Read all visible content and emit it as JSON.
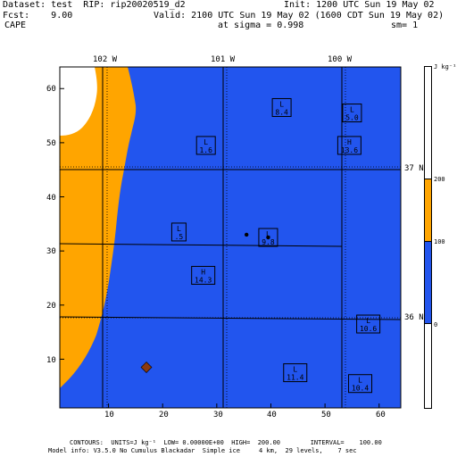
{
  "header": {
    "dataset": "Dataset: test  RIP: rip20020519_d2",
    "init": "Init: 1200 UTC Sun 19 May 02",
    "fcst": "Fcst:    9.00",
    "valid": "Valid: 2100 UTC Sun 19 May 02 (1600 CDT Sun 19 May 02)",
    "field": "CAPE",
    "sigma": "at sigma = 0.998",
    "sm": "sm= 1"
  },
  "top_labels": [
    "102 W",
    "101 W",
    "100 W"
  ],
  "right_labels": [
    "37 N",
    "36 N"
  ],
  "y_ticks": [
    "60",
    "50",
    "40",
    "30",
    "20",
    "10"
  ],
  "x_ticks": [
    "10",
    "20",
    "30",
    "40",
    "50",
    "60"
  ],
  "colorbar": {
    "unit": "J kg⁻¹",
    "labels": [
      "200",
      "100",
      "0"
    ],
    "colors": {
      "white": "#ffffff",
      "orange": "#ffa500",
      "blue": "#2255ee"
    }
  },
  "colors": {
    "blue": "#2255ee",
    "orange": "#ffa500",
    "marker": "#8b3a10"
  },
  "map": {
    "x_range": [
      1,
      64
    ],
    "y_range": [
      1,
      64
    ],
    "marks": [
      {
        "letter": "L",
        "value": "8.4",
        "x": 42,
        "y": 56.5
      },
      {
        "letter": "L",
        "value": "5.0",
        "x": 55,
        "y": 55.5
      },
      {
        "letter": "L",
        "value": "1.6",
        "x": 28,
        "y": 49.5
      },
      {
        "letter": "H",
        "value": "13.6",
        "x": 54.5,
        "y": 49.5
      },
      {
        "letter": "L",
        "value": ".5",
        "x": 23,
        "y": 33.5
      },
      {
        "letter": "L",
        "value": "9.8",
        "x": 39.5,
        "y": 32.5
      },
      {
        "letter": "H",
        "value": "14.3",
        "x": 27.5,
        "y": 25.5
      },
      {
        "letter": "L",
        "value": "10.6",
        "x": 58,
        "y": 16.5
      },
      {
        "letter": "L",
        "value": "11.4",
        "x": 44.5,
        "y": 7.5
      },
      {
        "letter": "L",
        "value": "10.4",
        "x": 56.5,
        "y": 5.5
      }
    ],
    "dots": [
      {
        "x": 35.5,
        "y": 33
      },
      {
        "x": 39.5,
        "y": 32.5
      }
    ],
    "diamond": {
      "x": 17,
      "y": 8.5
    }
  },
  "footer": {
    "line1": "CONTOURS:  UNITS=J kg⁻¹  LOW= 0.00000E+00  HIGH=  200.00        INTERVAL=    100.00",
    "line2": "Model info: V3.5.0 No Cumulus Blackadar  Simple ice     4 km,  29 levels,    7 sec"
  }
}
